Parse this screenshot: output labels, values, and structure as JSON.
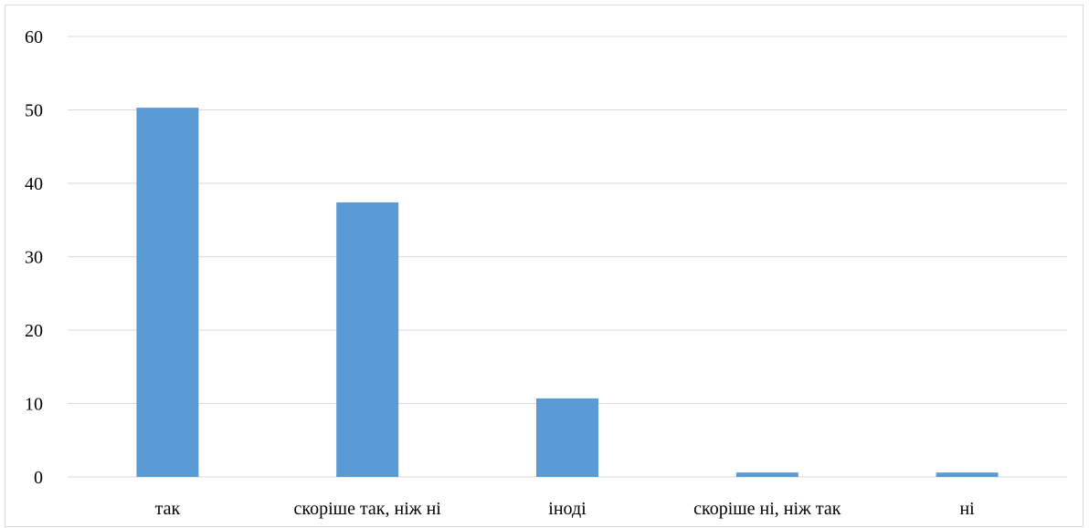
{
  "chart_data": {
    "type": "bar",
    "title": "",
    "xlabel": "",
    "ylabel": "",
    "categories": [
      "так",
      "скоріше так, ніж ні",
      "іноді",
      "скоріше ні, ніж так",
      "ні"
    ],
    "values": [
      50.3,
      37.4,
      10.7,
      0.6,
      0.6
    ],
    "ylim": [
      0,
      60
    ],
    "yticks": [
      "0",
      "10",
      "20",
      "30",
      "40",
      "50",
      "60"
    ],
    "grid": true,
    "legend": "none",
    "bar_color": "#5b9bd5",
    "grid_color": "#d9d9d9"
  }
}
